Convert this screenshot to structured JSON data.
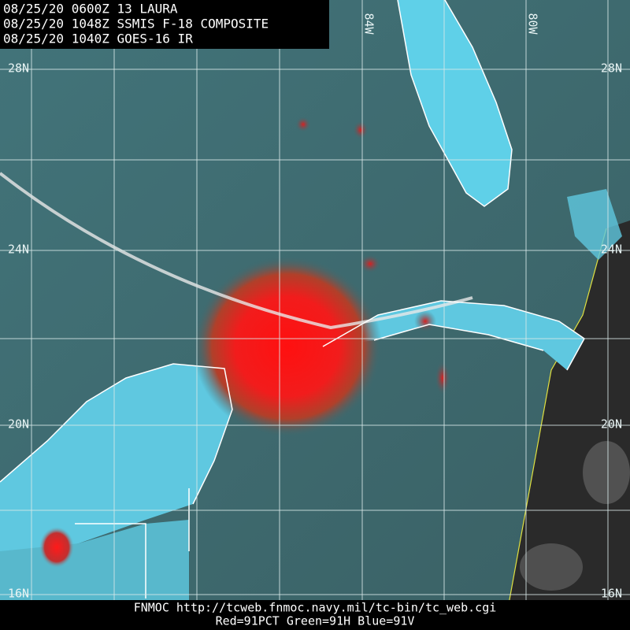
{
  "header": {
    "lines": [
      "08/25/20 0600Z  13 LAURA",
      "08/25/20 1048Z  SSMIS F-18 COMPOSITE",
      "08/25/20 1040Z  GOES-16 IR"
    ]
  },
  "grid": {
    "lat_labels": [
      "28N",
      "24N",
      "20N",
      "16N"
    ],
    "lon_labels": [
      "84W",
      "80W"
    ]
  },
  "footer": {
    "lines": [
      "FNMOC  http://tcweb.fnmoc.navy.mil/tc-bin/tc_web.cgi",
      "Red=91PCT  Green=91H  Blue=91V"
    ]
  }
}
